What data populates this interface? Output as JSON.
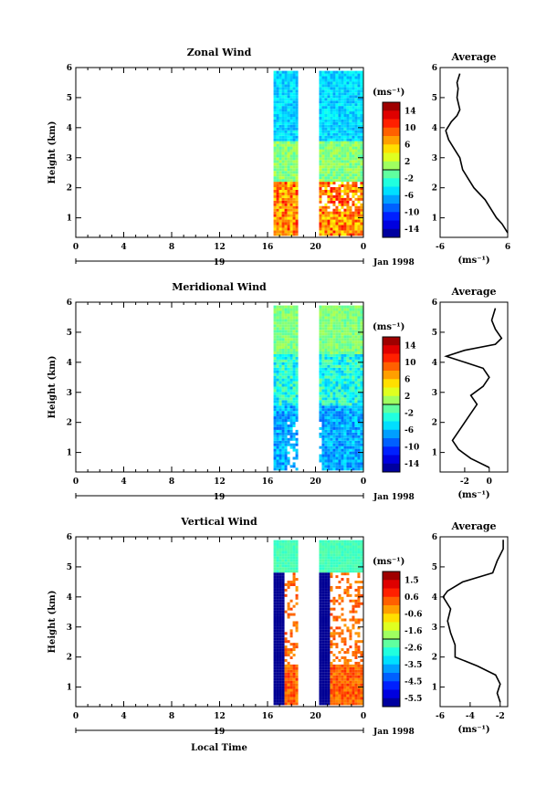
{
  "chart_data": [
    {
      "type": "heatmap",
      "title": "Zonal Wind",
      "ylabel": "Height (km)",
      "colorbar": {
        "unit": "(ms⁻¹)",
        "ticks": [
          "14",
          "10",
          "6",
          "2",
          "-2",
          "-6",
          "-10",
          "-14"
        ],
        "range": [
          -16,
          16
        ]
      },
      "x_ticks": [
        "0",
        "4",
        "8",
        "12",
        "16",
        "20",
        "0"
      ],
      "y_ticks": [
        "1",
        "2",
        "3",
        "4",
        "5",
        "6"
      ],
      "date_label": "19",
      "month_label": "Jan 1998",
      "profile": {
        "title": "Average",
        "xlabel": "(ms⁻¹)",
        "x_ticks": [
          "-6",
          "6"
        ],
        "xlim": [
          -6,
          6
        ],
        "heights": [
          0.5,
          0.8,
          1.0,
          1.3,
          1.6,
          2.0,
          2.3,
          2.6,
          3.0,
          3.3,
          3.6,
          3.9,
          4.2,
          4.4,
          4.6,
          5.0,
          5.3,
          5.5,
          5.8
        ],
        "values": [
          6,
          5,
          4,
          3,
          2,
          0,
          -1,
          -2,
          -2.5,
          -3.5,
          -4.5,
          -5,
          -4,
          -3,
          -2.5,
          -3,
          -2.8,
          -3,
          -2.5
        ]
      }
    },
    {
      "type": "heatmap",
      "title": "Meridional Wind",
      "ylabel": "Height (km)",
      "colorbar": {
        "unit": "(ms⁻¹)",
        "ticks": [
          "14",
          "10",
          "6",
          "2",
          "-2",
          "-6",
          "-10",
          "-14"
        ],
        "range": [
          -16,
          16
        ]
      },
      "x_ticks": [
        "0",
        "4",
        "8",
        "12",
        "16",
        "20",
        "0"
      ],
      "y_ticks": [
        "1",
        "2",
        "3",
        "4",
        "5",
        "6"
      ],
      "date_label": "19",
      "month_label": "Jan 1998",
      "profile": {
        "title": "Average",
        "xlabel": "(ms⁻¹)",
        "x_ticks": [
          "-2",
          "0"
        ],
        "xlim": [
          -4,
          1.5
        ],
        "heights": [
          0.5,
          0.8,
          1.1,
          1.4,
          1.7,
          2.0,
          2.3,
          2.6,
          2.9,
          3.2,
          3.5,
          3.8,
          4.0,
          4.2,
          4.4,
          4.6,
          4.8,
          5.1,
          5.4,
          5.8
        ],
        "values": [
          0,
          -1.5,
          -2.5,
          -3,
          -2.5,
          -2,
          -1.5,
          -1,
          -1.5,
          -0.5,
          0,
          -0.5,
          -2,
          -3.5,
          -2,
          0.5,
          1,
          0.5,
          0.2,
          0.5
        ]
      }
    },
    {
      "type": "heatmap",
      "title": "Vertical Wind",
      "ylabel": "Height (km)",
      "xlabel": "Local Time",
      "colorbar": {
        "unit": "(ms⁻¹)",
        "ticks": [
          "1.5",
          "0.6",
          "-0.6",
          "-1.6",
          "-2.6",
          "-3.5",
          "-4.5",
          "-5.5"
        ],
        "range": [
          -6,
          2
        ]
      },
      "x_ticks": [
        "0",
        "4",
        "8",
        "12",
        "16",
        "20",
        "0"
      ],
      "y_ticks": [
        "1",
        "2",
        "3",
        "4",
        "5",
        "6"
      ],
      "date_label": "19",
      "month_label": "Jan 1998",
      "profile": {
        "title": "Average",
        "xlabel": "(ms⁻¹)",
        "x_ticks": [
          "-6",
          "-4",
          "-2"
        ],
        "xlim": [
          -6,
          -1.5
        ],
        "heights": [
          0.5,
          0.8,
          1.1,
          1.4,
          1.7,
          2.0,
          2.4,
          2.8,
          3.2,
          3.6,
          4.0,
          4.2,
          4.5,
          4.8,
          5.2,
          5.6,
          5.9
        ],
        "values": [
          -2,
          -2.2,
          -2,
          -2.3,
          -3.5,
          -5,
          -5,
          -5.3,
          -5.5,
          -5.3,
          -5.8,
          -5.5,
          -4.5,
          -2.5,
          -2.2,
          -1.8,
          -1.8
        ]
      }
    }
  ]
}
